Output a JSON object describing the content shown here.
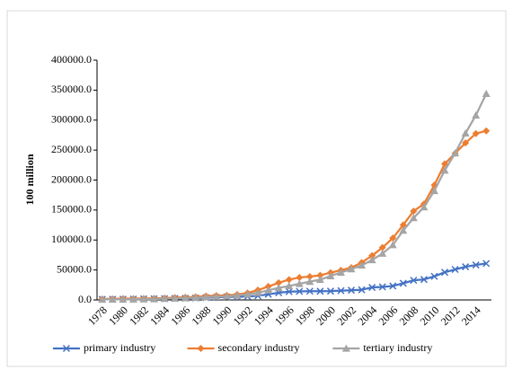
{
  "chart_data": {
    "type": "line",
    "y_label": "100 million",
    "categories": [
      "1978",
      null,
      "1980",
      null,
      "1982",
      null,
      "1984",
      null,
      "1986",
      null,
      "1988",
      null,
      "1990",
      null,
      "1992",
      null,
      "1994",
      null,
      "1996",
      null,
      "1998",
      null,
      "2000",
      null,
      "2002",
      null,
      "2004",
      null,
      "2006",
      null,
      "2008",
      null,
      "2010",
      null,
      "2012",
      null,
      "2014",
      null
    ],
    "series": [
      {
        "name": "primary industry",
        "color": "#4472c4",
        "marker": "x",
        "values": [
          1018,
          1259,
          1359,
          1546,
          1762,
          1960,
          2295,
          2541,
          2764,
          3204,
          3831,
          4228,
          5017,
          5289,
          5800,
          6887,
          9471,
          12020,
          13878,
          14265,
          14618,
          14549,
          14717,
          15502,
          16190,
          16970,
          20904,
          21807,
          23317,
          27788,
          32753,
          34161,
          39362,
          46163,
          50902,
          55329,
          58344,
          60862
        ]
      },
      {
        "name": "secondary industry",
        "color": "#ed7d31",
        "marker": "diamond",
        "values": [
          1745,
          1913,
          2192,
          2256,
          2383,
          2646,
          3106,
          3867,
          4493,
          5252,
          6587,
          7278,
          7717,
          9102,
          11700,
          16454,
          22445,
          28679,
          33835,
          37543,
          39004,
          41034,
          45556,
          49512,
          53897,
          62436,
          73904,
          87365,
          103162,
          125133,
          148180,
          160172,
          191630,
          227038,
          244643,
          261956,
          277572,
          282040
        ]
      },
      {
        "name": "tertiary industry",
        "color": "#a5a5a5",
        "marker": "triangle",
        "values": [
          905,
          878,
          982,
          1120,
          1306,
          1540,
          1990,
          2662,
          3148,
          3700,
          4651,
          5612,
          5888,
          7338,
          9357,
          11916,
          16180,
          19979,
          23326,
          26988,
          30580,
          33874,
          39898,
          45700,
          51421,
          57754,
          66649,
          77428,
          91759,
          115810,
          136823,
          154748,
          182038,
          216099,
          244822,
          277959,
          308059,
          344000
        ]
      }
    ],
    "ylim": [
      0,
      400000
    ],
    "yticks": [
      {
        "value": 0,
        "label": "0.0"
      },
      {
        "value": 50000,
        "label": "50000.0"
      },
      {
        "value": 100000,
        "label": "100000.0"
      },
      {
        "value": 150000,
        "label": "150000.0"
      },
      {
        "value": 200000,
        "label": "200000.0"
      },
      {
        "value": 250000,
        "label": "250000.0"
      },
      {
        "value": 300000,
        "label": "300000.0"
      },
      {
        "value": 350000,
        "label": "350000.0"
      },
      {
        "value": 400000,
        "label": "400000.0"
      }
    ],
    "grid": false,
    "legend": "bottom"
  }
}
